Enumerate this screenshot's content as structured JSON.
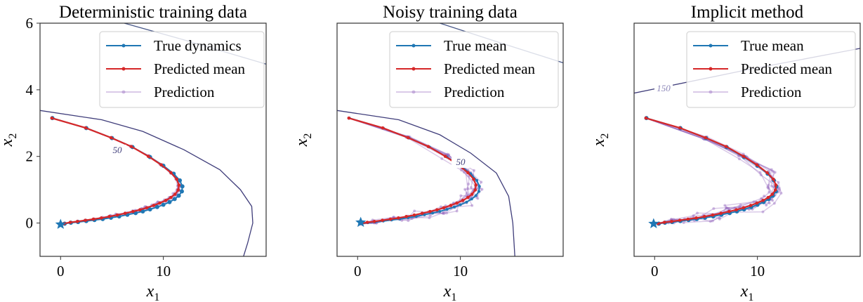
{
  "colors": {
    "true": "#1f77b4",
    "pred": "#d62728",
    "sample": "#9467bd",
    "contour": "#3f3d7a"
  },
  "chart_data": [
    {
      "type": "line",
      "title": "Deterministic training data",
      "xlabel": "x1",
      "ylabel": "x2",
      "xlim": [
        -2,
        20
      ],
      "ylim": [
        -1,
        6
      ],
      "xticks": [
        "0",
        "10"
      ],
      "yticks": [
        "0",
        "2",
        "4",
        "6"
      ],
      "legend": [
        "True dynamics",
        "Predicted mean",
        "Prediction"
      ],
      "legend_position": "top-right",
      "true": [
        [
          -0.8,
          3.15
        ],
        [
          2.5,
          2.85
        ],
        [
          5.0,
          2.55
        ],
        [
          7.0,
          2.28
        ],
        [
          8.7,
          1.98
        ],
        [
          10.0,
          1.72
        ],
        [
          11.0,
          1.48
        ],
        [
          11.6,
          1.28
        ],
        [
          11.85,
          1.1
        ],
        [
          11.8,
          0.95
        ],
        [
          11.5,
          0.82
        ],
        [
          11.1,
          0.72
        ],
        [
          10.6,
          0.63
        ],
        [
          10.0,
          0.55
        ],
        [
          9.4,
          0.48
        ],
        [
          8.7,
          0.41
        ],
        [
          8.0,
          0.35
        ],
        [
          7.3,
          0.3
        ],
        [
          6.5,
          0.25
        ],
        [
          5.7,
          0.2
        ],
        [
          4.9,
          0.16
        ],
        [
          4.1,
          0.12
        ],
        [
          3.3,
          0.09
        ],
        [
          2.5,
          0.06
        ],
        [
          1.7,
          0.03
        ],
        [
          1.0,
          0.01
        ],
        [
          0.4,
          -0.02
        ],
        [
          0,
          -0.04
        ]
      ],
      "pred_scale": 0.97,
      "sample_noise": 0.25,
      "sample_count": 5,
      "contours": [
        {
          "label": "50",
          "points": [
            [
              -2,
              3.38
            ],
            [
              4,
              3.1
            ],
            [
              8,
              2.75
            ],
            [
              12,
              2.2
            ],
            [
              15.5,
              1.6
            ],
            [
              17.5,
              1.0
            ],
            [
              18.6,
              0.5
            ],
            [
              18.7,
              0
            ],
            [
              18.2,
              -0.6
            ],
            [
              17.8,
              -1
            ]
          ],
          "label_at": [
            6.4,
            2.9
          ]
        },
        {
          "label": "",
          "points": [
            [
              6.2,
              6
            ],
            [
              12,
              5.5
            ],
            [
              20.1,
              4.76
            ]
          ]
        }
      ]
    },
    {
      "type": "line",
      "title": "Noisy training data",
      "xlabel": "x1",
      "ylabel": "x2",
      "xlim": [
        -2,
        20
      ],
      "ylim": [
        -1,
        6
      ],
      "xticks": [
        "0",
        "10"
      ],
      "yticks": [],
      "legend": [
        "True mean",
        "Predicted mean",
        "Prediction"
      ],
      "legend_position": "top-right",
      "true": [
        [
          -0.8,
          3.15
        ],
        [
          2.5,
          2.85
        ],
        [
          5.0,
          2.55
        ],
        [
          7.0,
          2.28
        ],
        [
          8.7,
          1.98
        ],
        [
          10.0,
          1.72
        ],
        [
          11.0,
          1.48
        ],
        [
          11.6,
          1.28
        ],
        [
          11.85,
          1.1
        ],
        [
          11.8,
          0.95
        ],
        [
          11.5,
          0.82
        ],
        [
          11.1,
          0.72
        ],
        [
          10.6,
          0.63
        ],
        [
          10.0,
          0.55
        ],
        [
          9.4,
          0.48
        ],
        [
          8.7,
          0.41
        ],
        [
          8.0,
          0.35
        ],
        [
          7.3,
          0.3
        ],
        [
          6.5,
          0.25
        ],
        [
          5.7,
          0.2
        ],
        [
          4.9,
          0.16
        ],
        [
          4.1,
          0.12
        ],
        [
          3.3,
          0.09
        ],
        [
          2.5,
          0.06
        ],
        [
          1.7,
          0.03
        ],
        [
          1.0,
          0.01
        ],
        [
          0.4,
          -0.02
        ],
        [
          0.3,
          0.02
        ]
      ],
      "pred_scale": 0.97,
      "sample_noise": 1.0,
      "sample_count": 8,
      "contours": [
        {
          "label": "50",
          "points": [
            [
              -2,
              3.38
            ],
            [
              4,
              3.1
            ],
            [
              8,
              2.65
            ],
            [
              11,
              2.1
            ],
            [
              13.5,
              1.5
            ],
            [
              14.7,
              0.8
            ],
            [
              15.1,
              0
            ],
            [
              15.3,
              -1
            ]
          ],
          "label_at": [
            8.7,
            2.65
          ]
        },
        {
          "label": "",
          "points": [
            [
              8,
              6
            ],
            [
              14,
              5.4
            ],
            [
              20.1,
              4.8
            ]
          ]
        }
      ]
    },
    {
      "type": "line",
      "title": "Implicit method",
      "xlabel": "x1",
      "ylabel": "x2",
      "xlim": [
        -2,
        20
      ],
      "ylim": [
        -1,
        6
      ],
      "xticks": [
        "0",
        "10"
      ],
      "yticks": [],
      "legend": [
        "True mean",
        "Predicted mean",
        "Prediction"
      ],
      "legend_position": "top-right",
      "true": [
        [
          -0.8,
          3.15
        ],
        [
          2.5,
          2.85
        ],
        [
          5.0,
          2.55
        ],
        [
          7.0,
          2.28
        ],
        [
          8.7,
          1.98
        ],
        [
          10.0,
          1.72
        ],
        [
          11.0,
          1.48
        ],
        [
          11.6,
          1.28
        ],
        [
          11.85,
          1.1
        ],
        [
          11.8,
          0.95
        ],
        [
          11.5,
          0.82
        ],
        [
          11.1,
          0.72
        ],
        [
          10.6,
          0.63
        ],
        [
          10.0,
          0.55
        ],
        [
          9.4,
          0.48
        ],
        [
          8.7,
          0.41
        ],
        [
          8.0,
          0.35
        ],
        [
          7.3,
          0.3
        ],
        [
          6.5,
          0.25
        ],
        [
          5.7,
          0.2
        ],
        [
          4.9,
          0.16
        ],
        [
          4.1,
          0.12
        ],
        [
          3.3,
          0.09
        ],
        [
          2.5,
          0.06
        ],
        [
          1.7,
          0.03
        ],
        [
          1.0,
          0.01
        ],
        [
          0.4,
          -0.02
        ],
        [
          -0.1,
          -0.02
        ]
      ],
      "pred_scale": 1.0,
      "sample_noise": 1.2,
      "sample_count": 8,
      "contours": [
        {
          "label": "150",
          "points": [
            [
              -2,
              3.9
            ],
            [
              9,
              4.6
            ],
            [
              20.1,
              5.25
            ]
          ],
          "label_at": [
            15.5,
            4.95
          ]
        }
      ]
    }
  ]
}
